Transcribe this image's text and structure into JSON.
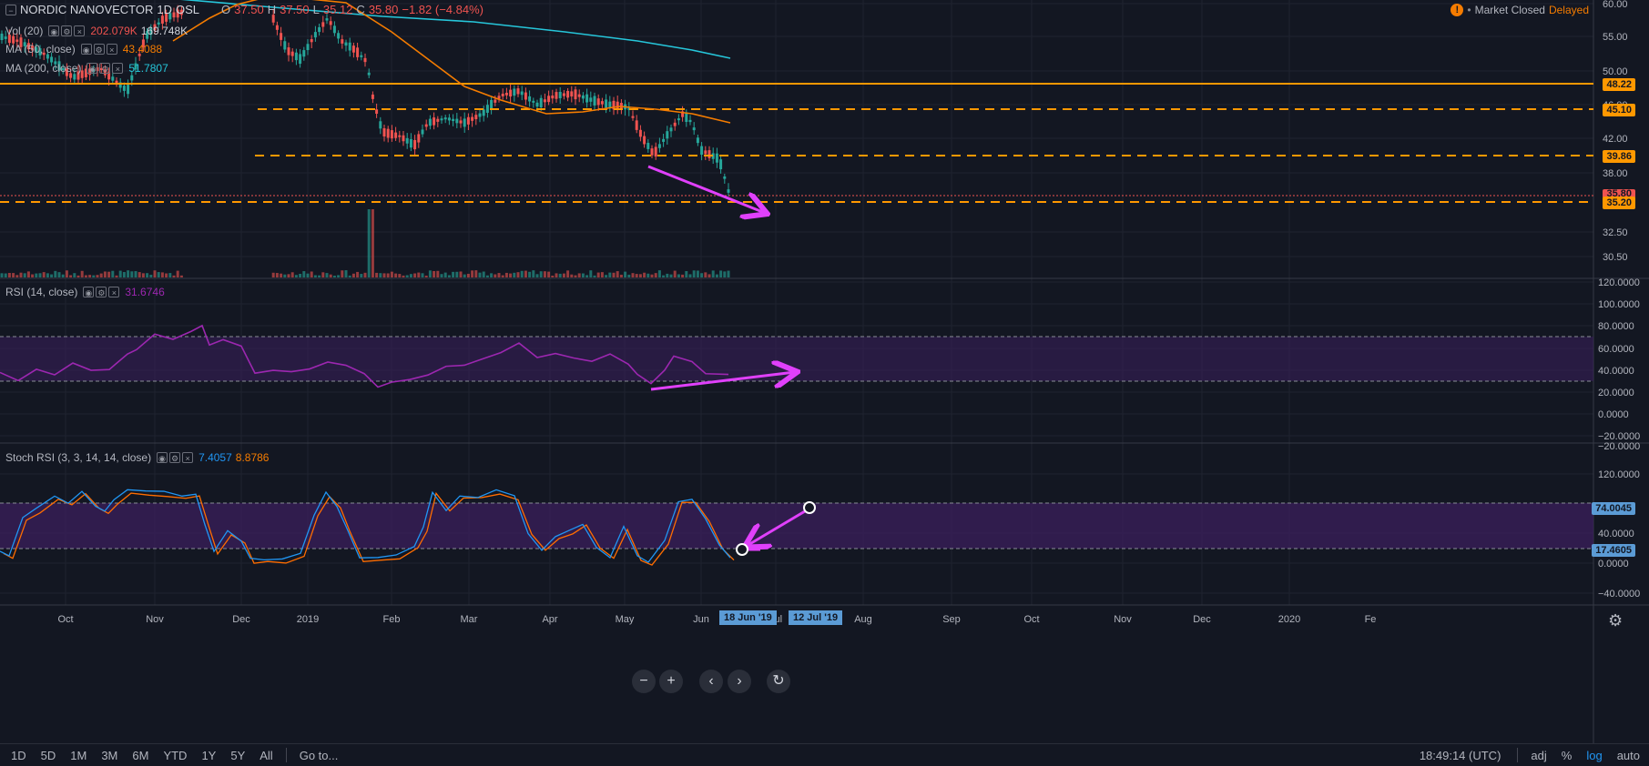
{
  "header": {
    "symbol": "NORDIC NANOVECTOR",
    "interval": "1D",
    "exchange": "OSL",
    "ohlc": {
      "o_label": "O",
      "o": "37.50",
      "h_label": "H",
      "h": "37.50",
      "l_label": "L",
      "l": "35.12",
      "c_label": "C",
      "c": "35.80",
      "change": "−1.82 (−4.84%)"
    },
    "market_status": "Market Closed",
    "delayed": "Delayed"
  },
  "indicators": {
    "vol": {
      "label": "Vol (20)",
      "v1": "202.079K",
      "v2": "169.748K"
    },
    "ma50": {
      "label": "MA (50, close)",
      "value": "43.4088"
    },
    "ma200": {
      "label": "MA (200, close)",
      "value": "51.7807"
    },
    "rsi": {
      "label": "RSI (14, close)",
      "value": "31.6746"
    },
    "stoch": {
      "label": "Stoch RSI (3, 3, 14, 14, close)",
      "k": "7.4057",
      "d": "8.8786"
    }
  },
  "price_axis": [
    "60.00",
    "55.00",
    "50.00",
    "46.00",
    "42.00",
    "38.00",
    "32.50",
    "30.50"
  ],
  "price_labels": [
    {
      "text": "48.22",
      "color": "#ff9800"
    },
    {
      "text": "45.10",
      "color": "#ff9800"
    },
    {
      "text": "39.86",
      "color": "#ff9800"
    },
    {
      "text": "35.80",
      "color": "#ef5350"
    },
    {
      "text": "35.20",
      "color": "#ff9800"
    }
  ],
  "rsi_axis": [
    "120.0000",
    "100.0000",
    "80.0000",
    "60.0000",
    "40.0000",
    "20.0000",
    "0.0000",
    "−20.0000"
  ],
  "stoch_axis": [
    "−20.0000",
    "120.0000",
    "40.0000",
    "0.0000",
    "−40.0000"
  ],
  "stoch_labels": [
    {
      "text": "74.0045",
      "color": "#5b9bd5"
    },
    {
      "text": "17.4605",
      "color": "#5b9bd5"
    }
  ],
  "time_axis": [
    "Oct",
    "Nov",
    "Dec",
    "2019",
    "Feb",
    "Mar",
    "Apr",
    "May",
    "Jun",
    "Jul",
    "Aug",
    "Sep",
    "Oct",
    "Nov",
    "Dec",
    "2020",
    "Fe"
  ],
  "time_markers": [
    "18 Jun '19",
    "12 Jul '19"
  ],
  "ranges": [
    "1D",
    "5D",
    "1M",
    "3M",
    "6M",
    "YTD",
    "1Y",
    "5Y",
    "All"
  ],
  "goto": "Go to...",
  "clock": "18:49:14 (UTC)",
  "toggles": [
    "adj",
    "%",
    "log",
    "auto"
  ],
  "colors": {
    "background": "#131722",
    "up": "#26a69a",
    "down": "#ef5350",
    "ma50": "#f57c00",
    "ma200": "#26c6da",
    "level": "#ff9800",
    "rsi": "#9c27b0",
    "stoch_k": "#2196f3",
    "stoch_d": "#ff6d00",
    "annotation": "#e040fb"
  }
}
